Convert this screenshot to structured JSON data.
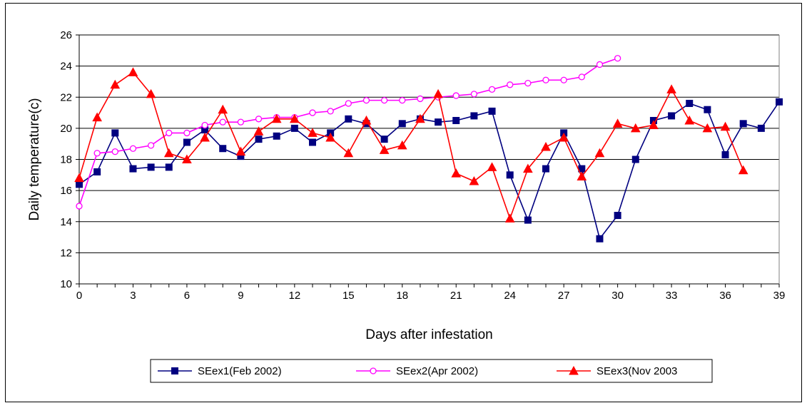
{
  "chart_data": {
    "type": "line",
    "xlabel": "Days after infestation",
    "ylabel": "Daily temperature(c)",
    "xlim": [
      0,
      39
    ],
    "ylim": [
      10,
      26
    ],
    "xticks": [
      0,
      3,
      6,
      9,
      12,
      15,
      18,
      21,
      24,
      27,
      30,
      33,
      36,
      39
    ],
    "yticks": [
      10,
      12,
      14,
      16,
      18,
      20,
      22,
      24,
      26
    ],
    "grid": "horizontal",
    "legend_position": "bottom",
    "series": [
      {
        "name": "SEex1(Feb 2002)",
        "color": "#000080",
        "marker": "square",
        "x": [
          0,
          1,
          2,
          3,
          4,
          5,
          6,
          7,
          8,
          9,
          10,
          11,
          12,
          13,
          14,
          15,
          16,
          17,
          18,
          19,
          20,
          21,
          22,
          23,
          24,
          25,
          26,
          27,
          28,
          29,
          30,
          31,
          32,
          33,
          34,
          35,
          36,
          37,
          38,
          39
        ],
        "y": [
          16.4,
          17.2,
          19.7,
          17.4,
          17.5,
          17.5,
          19.1,
          19.9,
          18.7,
          18.2,
          19.3,
          19.5,
          20.0,
          19.1,
          19.7,
          20.6,
          20.3,
          19.3,
          20.3,
          20.6,
          20.4,
          20.5,
          20.8,
          21.1,
          17.0,
          14.1,
          17.4,
          19.7,
          17.4,
          12.9,
          14.4,
          18.0,
          20.5,
          20.8,
          21.6,
          21.2,
          18.3,
          20.3,
          20.0,
          21.7
        ]
      },
      {
        "name": "SEex2(Apr 2002)",
        "color": "#FF00FF",
        "marker": "circle",
        "x": [
          0,
          1,
          2,
          3,
          4,
          5,
          6,
          7,
          8,
          9,
          10,
          11,
          12,
          13,
          14,
          15,
          16,
          17,
          18,
          19,
          20,
          21,
          22,
          23,
          24,
          25,
          26,
          27,
          28,
          29,
          30
        ],
        "y": [
          15.0,
          18.4,
          18.5,
          18.7,
          18.9,
          19.7,
          19.7,
          20.2,
          20.4,
          20.4,
          20.6,
          20.7,
          20.7,
          21.0,
          21.1,
          21.6,
          21.8,
          21.8,
          21.8,
          21.9,
          22.0,
          22.1,
          22.2,
          22.5,
          22.8,
          22.9,
          23.1,
          23.1,
          23.3,
          24.1,
          24.5
        ]
      },
      {
        "name": "SEex3(Nov 2003",
        "color": "#FF0000",
        "marker": "triangle",
        "x": [
          0,
          1,
          2,
          3,
          4,
          5,
          6,
          7,
          8,
          9,
          10,
          11,
          12,
          13,
          14,
          15,
          16,
          17,
          18,
          19,
          20,
          21,
          22,
          23,
          24,
          25,
          26,
          27,
          28,
          29,
          30,
          31,
          32,
          33,
          34,
          35,
          36,
          37
        ],
        "y": [
          16.8,
          20.7,
          22.8,
          23.6,
          22.2,
          18.4,
          18.0,
          19.4,
          21.2,
          18.5,
          19.8,
          20.6,
          20.6,
          19.7,
          19.4,
          18.4,
          20.5,
          18.6,
          18.9,
          20.6,
          22.2,
          17.1,
          16.6,
          17.5,
          14.2,
          17.4,
          18.8,
          19.4,
          16.9,
          18.4,
          20.3,
          20.0,
          20.2,
          22.5,
          20.5,
          20.0,
          20.1,
          17.3
        ]
      }
    ]
  }
}
